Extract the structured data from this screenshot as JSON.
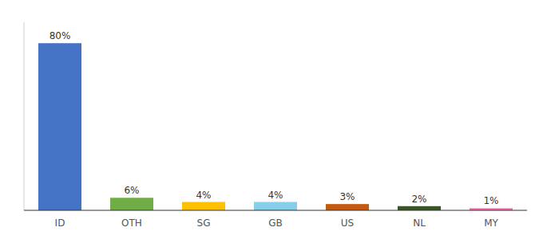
{
  "chart_data": {
    "type": "bar",
    "categories": [
      "ID",
      "OTH",
      "SG",
      "GB",
      "US",
      "NL",
      "MY"
    ],
    "values": [
      80,
      6,
      4,
      4,
      3,
      2,
      1
    ],
    "value_labels": [
      "80%",
      "6%",
      "4%",
      "4%",
      "3%",
      "2%",
      "1%"
    ],
    "colors": [
      "#4472C4",
      "#70AD47",
      "#FFC000",
      "#87CEEB",
      "#C55A11",
      "#375623",
      "#FF69B4"
    ],
    "ylim": [
      0,
      90
    ],
    "data_labels": true,
    "tick_labels": "x",
    "grid": false
  }
}
